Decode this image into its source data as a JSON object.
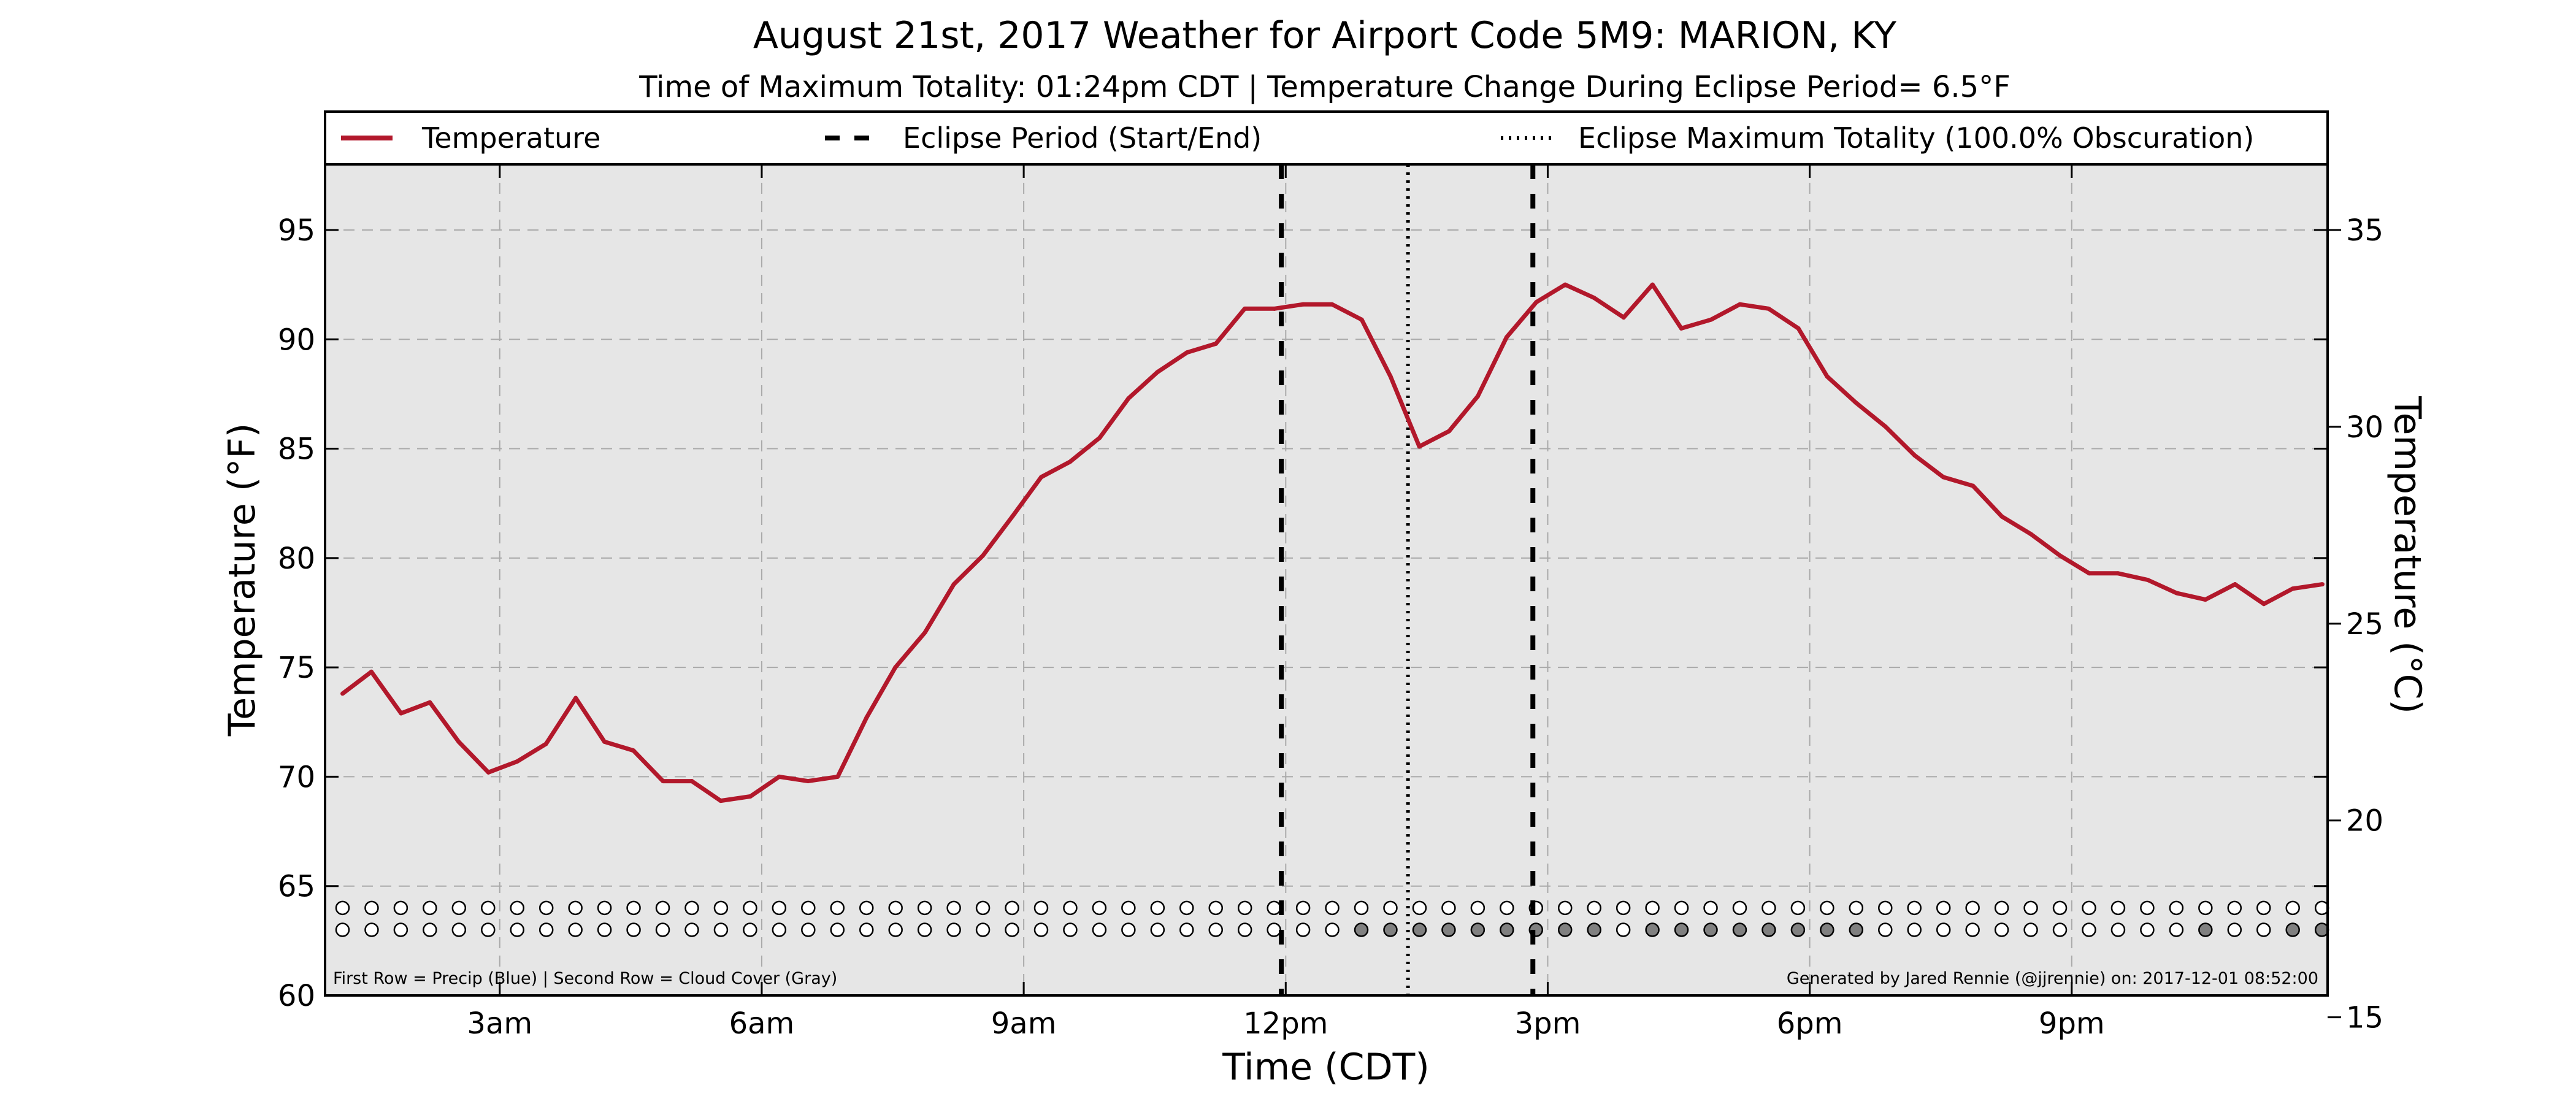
{
  "chart_data": {
    "type": "line",
    "title": "August 21st, 2017 Weather for Airport Code 5M9: MARION, KY",
    "subtitle": "Time of Maximum Totality: 01:24pm CDT | Temperature Change During Eclipse Period= 6.5°F",
    "xlabel": "Time (CDT)",
    "ylabel": "Temperature (°F)",
    "ylabel_right": "Temperature (°C)",
    "xlim": [
      1.0,
      23.93
    ],
    "ylim": [
      60,
      98
    ],
    "ylim_right_celsius": [
      15,
      36.67
    ],
    "grid": true,
    "legend_position": "top",
    "x_ticks": [
      {
        "value": 3,
        "label": "3am"
      },
      {
        "value": 6,
        "label": "6am"
      },
      {
        "value": 9,
        "label": "9am"
      },
      {
        "value": 12,
        "label": "12pm"
      },
      {
        "value": 15,
        "label": "3pm"
      },
      {
        "value": 18,
        "label": "6pm"
      },
      {
        "value": 21,
        "label": "9pm"
      }
    ],
    "y_ticks": [
      60,
      65,
      70,
      75,
      80,
      85,
      90,
      95
    ],
    "y_ticks_right": [
      15,
      20,
      25,
      30,
      35
    ],
    "legend": [
      {
        "label": "Temperature",
        "style": "solid"
      },
      {
        "label": "Eclipse Period (Start/End)",
        "style": "dashed"
      },
      {
        "label": "Eclipse Maximum Totality (100.0% Obscuration)",
        "style": "dotted"
      }
    ],
    "series": [
      {
        "name": "Temperature",
        "color": "#b2182b",
        "x": [
          1.2,
          1.53,
          1.87,
          2.2,
          2.53,
          2.87,
          3.2,
          3.53,
          3.87,
          4.2,
          4.53,
          4.87,
          5.2,
          5.53,
          5.87,
          6.2,
          6.53,
          6.87,
          7.2,
          7.53,
          7.87,
          8.2,
          8.53,
          8.87,
          9.2,
          9.53,
          9.87,
          10.2,
          10.53,
          10.87,
          11.2,
          11.53,
          11.87,
          12.2,
          12.53,
          12.87,
          13.2,
          13.53,
          13.87,
          14.2,
          14.53,
          14.87,
          15.2,
          15.53,
          15.87,
          16.2,
          16.53,
          16.87,
          17.2,
          17.53,
          17.87,
          18.2,
          18.53,
          18.87,
          19.2,
          19.53,
          19.87,
          20.2,
          20.53,
          20.87,
          21.2,
          21.53,
          21.87,
          22.2,
          22.53,
          22.87,
          23.2,
          23.53,
          23.87
        ],
        "values": [
          73.8,
          74.8,
          72.9,
          73.4,
          71.6,
          70.2,
          70.7,
          71.5,
          73.6,
          71.6,
          71.2,
          69.8,
          69.8,
          68.9,
          69.1,
          70.0,
          69.8,
          70.0,
          72.7,
          75.0,
          76.6,
          78.8,
          80.1,
          81.9,
          83.7,
          84.4,
          85.5,
          87.3,
          88.5,
          89.4,
          89.8,
          91.4,
          91.4,
          91.6,
          91.6,
          90.9,
          88.3,
          85.1,
          85.8,
          87.4,
          90.1,
          91.7,
          92.5,
          91.9,
          91.0,
          92.5,
          90.5,
          90.9,
          91.6,
          91.4,
          90.5,
          88.3,
          87.1,
          86.0,
          84.7,
          83.7,
          83.3,
          81.9,
          81.1,
          80.1,
          79.3,
          79.3,
          79.0,
          78.4,
          78.1,
          78.8,
          77.9,
          78.6,
          78.8
        ]
      }
    ],
    "eclipse_period": {
      "start": 11.95,
      "end": 14.83,
      "style": "dashed"
    },
    "eclipse_max": {
      "x": 13.4,
      "style": "dotted"
    },
    "markers": {
      "precip_row_y": 64.0,
      "cloud_row_y": 63.0,
      "x_start": 1.2,
      "step": 0.3333,
      "count": 69,
      "precip_filled_indices": [],
      "cloud_filled_indices": [
        35,
        36,
        37,
        38,
        39,
        40,
        41,
        42,
        43,
        45,
        46,
        47,
        48,
        49,
        50,
        51,
        52,
        64,
        67,
        68
      ],
      "empty_fill": "#ffffff",
      "precip_fill": "#1f4fd1",
      "cloud_fill": "#808080"
    },
    "footnote_left": "First Row = Precip (Blue) | Second Row = Cloud Cover (Gray)",
    "footnote_right": "Generated by Jared Rennie (@jjrennie) on: 2017-12-01 08:52:00",
    "colors": {
      "plot_background": "#e6e6e6",
      "grid": "#aaaaaa",
      "temperature_line": "#b2182b"
    }
  }
}
